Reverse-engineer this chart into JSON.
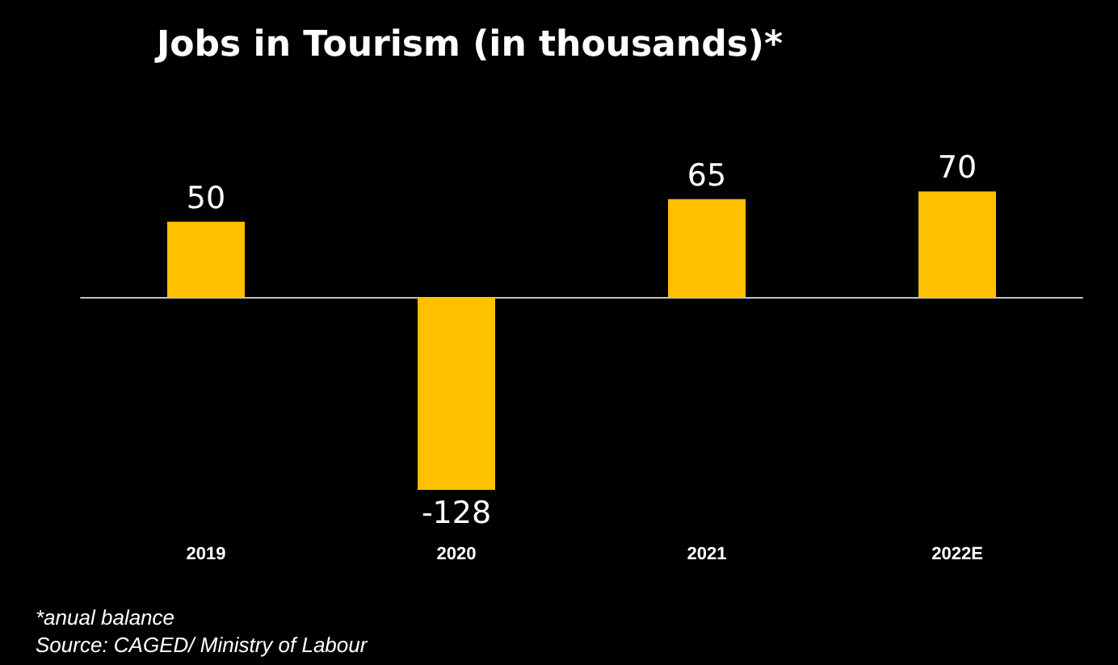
{
  "chart_data": {
    "type": "bar",
    "title": "Jobs in Tourism (in thousands)*",
    "categories": [
      "2019",
      "2020",
      "2021",
      "2022E"
    ],
    "values": [
      50,
      -128,
      65,
      70
    ],
    "color": "#ffc000",
    "data_labels": true,
    "annotations": [
      "*anual balance",
      "Source: CAGED/ Ministry of Labour"
    ]
  }
}
